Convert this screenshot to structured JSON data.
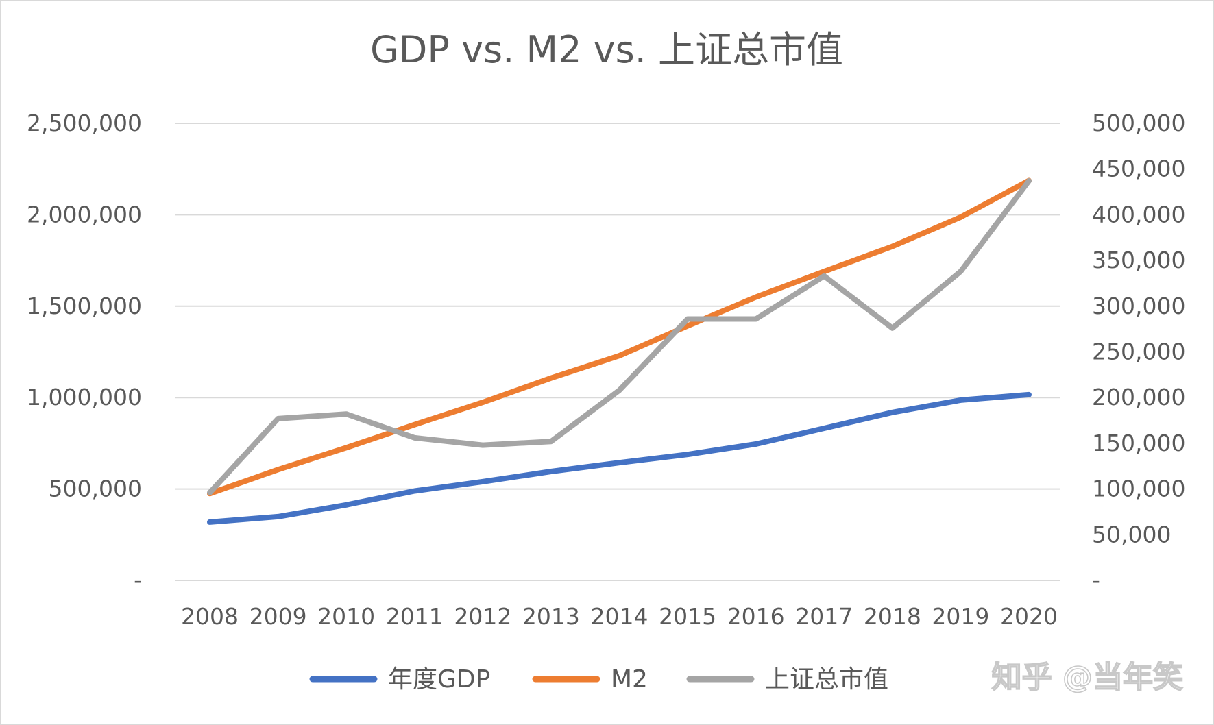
{
  "chart_data": {
    "type": "line",
    "title": "GDP vs. M2 vs. 上证总市值",
    "x": [
      "2008",
      "2009",
      "2010",
      "2011",
      "2012",
      "2013",
      "2014",
      "2015",
      "2016",
      "2017",
      "2018",
      "2019",
      "2020"
    ],
    "primary_axis": {
      "side": "left",
      "ylim": [
        0,
        2500000
      ],
      "ticks": [
        0,
        500000,
        1000000,
        1500000,
        2000000,
        2500000
      ],
      "tick_labels": [
        "-",
        "500,000",
        "1,000,000",
        "1,500,000",
        "2,000,000",
        "2,500,000"
      ]
    },
    "secondary_axis": {
      "side": "right",
      "ylim": [
        0,
        500000
      ],
      "ticks": [
        0,
        50000,
        100000,
        150000,
        200000,
        250000,
        300000,
        350000,
        400000,
        450000,
        500000
      ],
      "tick_labels": [
        "-",
        "50,000",
        "100,000",
        "150,000",
        "200,000",
        "250,000",
        "300,000",
        "350,000",
        "400,000",
        "450,000",
        "500,000"
      ]
    },
    "series": [
      {
        "name": "年度GDP",
        "axis": "primary",
        "color": "#4472c4",
        "values": [
          319000,
          349000,
          413000,
          489000,
          540000,
          596000,
          644000,
          689000,
          746000,
          832000,
          919000,
          986000,
          1016000
        ]
      },
      {
        "name": "M2",
        "axis": "primary",
        "color": "#ed7d31",
        "values": [
          475000,
          606000,
          726000,
          852000,
          974000,
          1107000,
          1229000,
          1392000,
          1550000,
          1690000,
          1827000,
          1987000,
          2187000
        ]
      },
      {
        "name": "上证总市值",
        "axis": "secondary",
        "color": "#a5a5a5",
        "values": [
          96000,
          177000,
          182000,
          156000,
          148000,
          152000,
          208000,
          286000,
          286000,
          333000,
          276000,
          338000,
          437000
        ]
      }
    ],
    "grid": true,
    "legend": "bottom"
  },
  "watermark": "知乎 @当年笑"
}
